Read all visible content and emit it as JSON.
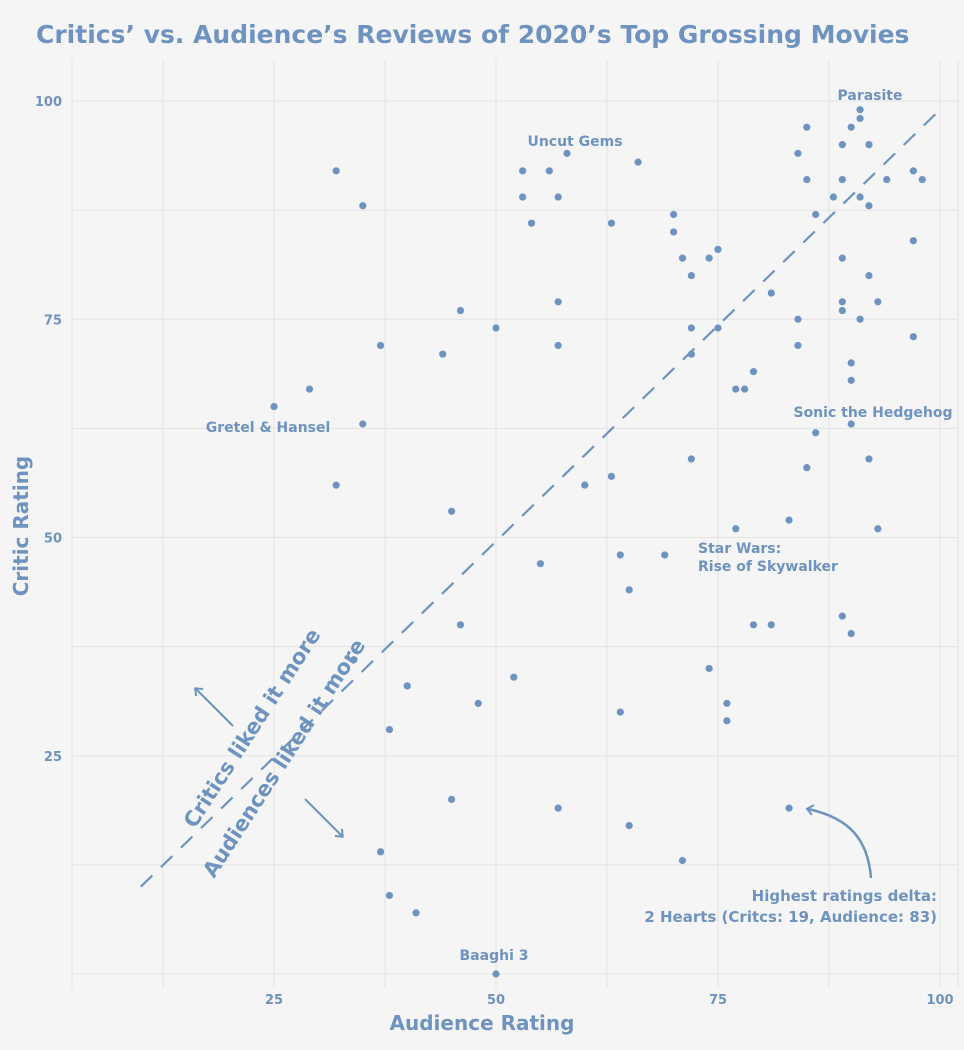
{
  "colors": {
    "accent": "#6f93c0",
    "grid": "#e3e3e3",
    "background": "#f5f5f5"
  },
  "chart_data": {
    "type": "scatter",
    "title": "Critics’ vs. Audience’s Reviews of 2020’s Top Grossing Movies",
    "xlabel": "Audience Rating",
    "ylabel": "Critic Rating",
    "xlim": [
      2,
      105
    ],
    "ylim": [
      0,
      100
    ],
    "x_ticks": [
      25,
      50,
      75,
      100
    ],
    "y_ticks": [
      25,
      50,
      75,
      100
    ],
    "x_tick_labels": [
      "25",
      "50",
      "75",
      "100"
    ],
    "y_tick_labels": [
      "25",
      "50",
      "75",
      "100"
    ],
    "grid": true,
    "reference_line": {
      "style": "dashed",
      "from": [
        10,
        10
      ],
      "to": [
        100,
        99
      ]
    },
    "points": [
      [
        91,
        99
      ],
      [
        91,
        98
      ],
      [
        85,
        97
      ],
      [
        90,
        97
      ],
      [
        84,
        94
      ],
      [
        89,
        95
      ],
      [
        92,
        95
      ],
      [
        85,
        91
      ],
      [
        89,
        91
      ],
      [
        94,
        91
      ],
      [
        97,
        92
      ],
      [
        98,
        91
      ],
      [
        88,
        89
      ],
      [
        91,
        89
      ],
      [
        92,
        88
      ],
      [
        86,
        87
      ],
      [
        97,
        84
      ],
      [
        89,
        82
      ],
      [
        92,
        80
      ],
      [
        89,
        77
      ],
      [
        93,
        77
      ],
      [
        89,
        76
      ],
      [
        91,
        75
      ],
      [
        84,
        75
      ],
      [
        97,
        73
      ],
      [
        84,
        72
      ],
      [
        90,
        70
      ],
      [
        90,
        68
      ],
      [
        90,
        63
      ],
      [
        86,
        62
      ],
      [
        92,
        59
      ],
      [
        85,
        58
      ],
      [
        93,
        51
      ],
      [
        83,
        52
      ],
      [
        89,
        41
      ],
      [
        90,
        39
      ],
      [
        83,
        19
      ],
      [
        58,
        94
      ],
      [
        66,
        93
      ],
      [
        53,
        92
      ],
      [
        56,
        92
      ],
      [
        53,
        89
      ],
      [
        57,
        89
      ],
      [
        54,
        86
      ],
      [
        63,
        86
      ],
      [
        70,
        87
      ],
      [
        70,
        85
      ],
      [
        71,
        82
      ],
      [
        74,
        82
      ],
      [
        75,
        83
      ],
      [
        72,
        80
      ],
      [
        81,
        78
      ],
      [
        72,
        74
      ],
      [
        75,
        74
      ],
      [
        72,
        71
      ],
      [
        79,
        69
      ],
      [
        77,
        67
      ],
      [
        78,
        67
      ],
      [
        72,
        59
      ],
      [
        77,
        51
      ],
      [
        69,
        48
      ],
      [
        64,
        48
      ],
      [
        65,
        44
      ],
      [
        79,
        40
      ],
      [
        81,
        40
      ],
      [
        74,
        35
      ],
      [
        76,
        31
      ],
      [
        76,
        29
      ],
      [
        64,
        30
      ],
      [
        57,
        19
      ],
      [
        65,
        17
      ],
      [
        71,
        13
      ],
      [
        57,
        77
      ],
      [
        57,
        72
      ],
      [
        50,
        74
      ],
      [
        46,
        76
      ],
      [
        44,
        71
      ],
      [
        63,
        57
      ],
      [
        60,
        56
      ],
      [
        55,
        47
      ],
      [
        45,
        53
      ],
      [
        46,
        40
      ],
      [
        52,
        34
      ],
      [
        48,
        31
      ],
      [
        45,
        20
      ],
      [
        32,
        92
      ],
      [
        35,
        88
      ],
      [
        37,
        72
      ],
      [
        29,
        67
      ],
      [
        25,
        65
      ],
      [
        35,
        63
      ],
      [
        32,
        56
      ],
      [
        34,
        36
      ],
      [
        40,
        33
      ],
      [
        38,
        28
      ],
      [
        37,
        14
      ],
      [
        38,
        9
      ],
      [
        41,
        7
      ],
      [
        50,
        0
      ]
    ],
    "labeled_points": [
      {
        "label": "Parasite",
        "x": 91,
        "y": 99
      },
      {
        "label": "Uncut Gems",
        "x": 58,
        "y": 94
      },
      {
        "label": "Gretel & Hansel",
        "x": 25,
        "y": 65
      },
      {
        "label": "Sonic the Hedgehog",
        "x": 90,
        "y": 63
      },
      {
        "label": "Star Wars: Rise of Skywalker",
        "x": 77,
        "y": 51
      },
      {
        "label": "Baaghi 3",
        "x": 50,
        "y": 0
      }
    ],
    "annotations": {
      "critics_region": "Critics liked it more",
      "audience_region": "Audiences liked it more",
      "delta_line1": "Highest ratings delta:",
      "delta_line2": "2 Hearts (Critcs: 19, Audience: 83)"
    },
    "labels": {
      "parasite": "Parasite",
      "uncut_gems": "Uncut Gems",
      "gretel": "Gretel & Hansel",
      "sonic": "Sonic the Hedgehog",
      "starwars_1": "Star Wars:",
      "starwars_2": "Rise of Skywalker",
      "baaghi": "Baaghi 3"
    }
  }
}
